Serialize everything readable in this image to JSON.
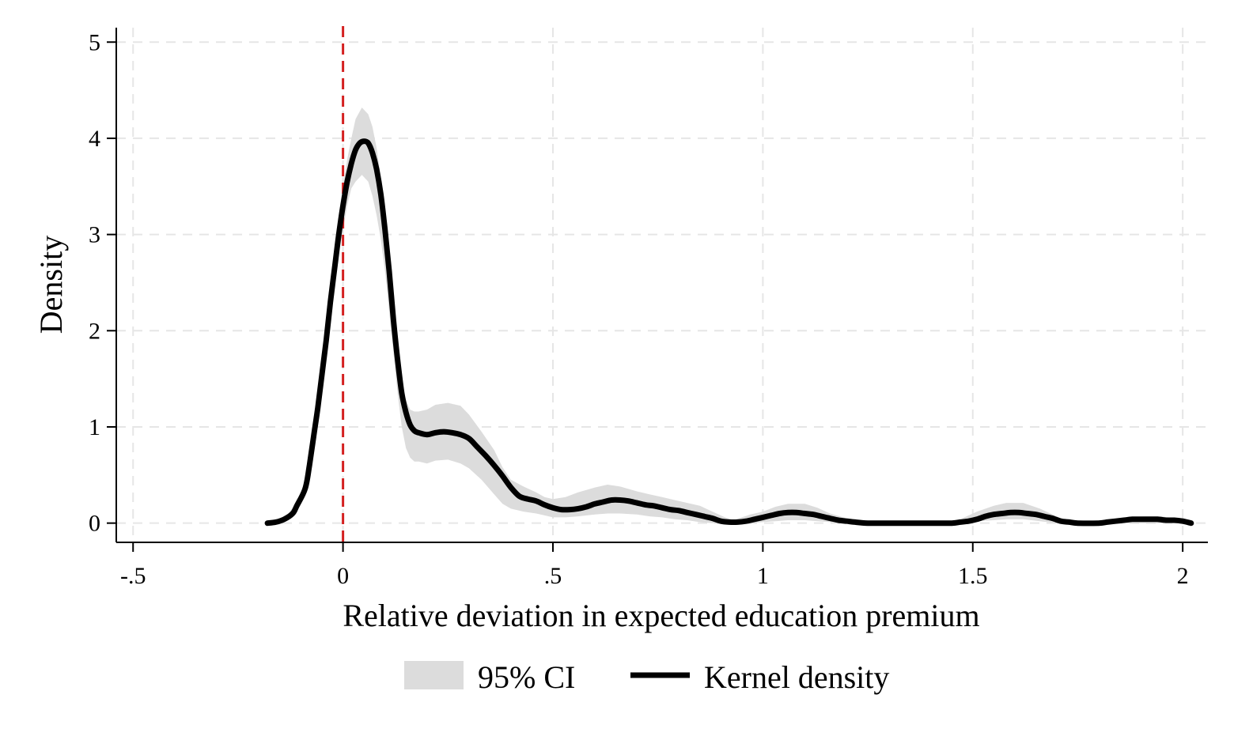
{
  "chart_data": {
    "type": "line",
    "title": "",
    "xlabel": "Relative deviation in expected education premium",
    "ylabel": "Density",
    "xlim": [
      -0.54,
      2.06
    ],
    "ylim": [
      -0.2,
      5.15
    ],
    "x_ticks": [
      -0.5,
      0,
      0.5,
      1,
      1.5,
      2
    ],
    "x_tick_labels": [
      "-.5",
      "0",
      ".5",
      "1",
      "1.5",
      "2"
    ],
    "y_ticks": [
      0,
      1,
      2,
      3,
      4,
      5
    ],
    "y_tick_labels": [
      "0",
      "1",
      "2",
      "3",
      "4",
      "5"
    ],
    "grid": true,
    "legend_position": "bottom",
    "reference_line": {
      "axis": "x",
      "value": 0,
      "color": "#d42020",
      "style": "dashed"
    },
    "colors": {
      "ci_fill": "#dcdcdc",
      "line": "#000000",
      "grid": "#e6e6e6"
    },
    "series": [
      {
        "name": "95% CI",
        "kind": "band",
        "points": [
          [
            -0.18,
            0.0,
            0.01
          ],
          [
            -0.15,
            0.01,
            0.05
          ],
          [
            -0.13,
            0.04,
            0.1
          ],
          [
            -0.11,
            0.12,
            0.22
          ],
          [
            -0.09,
            0.28,
            0.42
          ],
          [
            -0.07,
            0.72,
            0.92
          ],
          [
            -0.05,
            1.4,
            1.68
          ],
          [
            -0.03,
            2.15,
            2.5
          ],
          [
            -0.01,
            2.8,
            3.2
          ],
          [
            0.0,
            3.05,
            3.5
          ],
          [
            0.01,
            3.3,
            3.78
          ],
          [
            0.02,
            3.48,
            4.0
          ],
          [
            0.03,
            3.55,
            4.2
          ],
          [
            0.045,
            3.62,
            4.32
          ],
          [
            0.06,
            3.55,
            4.25
          ],
          [
            0.07,
            3.4,
            4.12
          ],
          [
            0.08,
            3.2,
            3.9
          ],
          [
            0.09,
            2.95,
            3.6
          ],
          [
            0.1,
            2.62,
            3.22
          ],
          [
            0.11,
            2.2,
            2.8
          ],
          [
            0.12,
            1.78,
            2.32
          ],
          [
            0.13,
            1.35,
            1.88
          ],
          [
            0.14,
            1.0,
            1.52
          ],
          [
            0.15,
            0.78,
            1.28
          ],
          [
            0.16,
            0.68,
            1.18
          ],
          [
            0.17,
            0.64,
            1.16
          ],
          [
            0.18,
            0.64,
            1.16
          ],
          [
            0.2,
            0.62,
            1.18
          ],
          [
            0.22,
            0.65,
            1.23
          ],
          [
            0.25,
            0.66,
            1.25
          ],
          [
            0.28,
            0.62,
            1.22
          ],
          [
            0.3,
            0.57,
            1.13
          ],
          [
            0.33,
            0.45,
            0.95
          ],
          [
            0.36,
            0.3,
            0.76
          ],
          [
            0.38,
            0.2,
            0.58
          ],
          [
            0.4,
            0.15,
            0.45
          ],
          [
            0.43,
            0.12,
            0.38
          ],
          [
            0.46,
            0.1,
            0.32
          ],
          [
            0.48,
            0.08,
            0.27
          ],
          [
            0.5,
            0.06,
            0.25
          ],
          [
            0.53,
            0.06,
            0.27
          ],
          [
            0.56,
            0.07,
            0.32
          ],
          [
            0.6,
            0.09,
            0.37
          ],
          [
            0.63,
            0.1,
            0.4
          ],
          [
            0.66,
            0.1,
            0.38
          ],
          [
            0.7,
            0.09,
            0.33
          ],
          [
            0.73,
            0.07,
            0.3
          ],
          [
            0.76,
            0.06,
            0.27
          ],
          [
            0.79,
            0.04,
            0.24
          ],
          [
            0.82,
            0.03,
            0.21
          ],
          [
            0.85,
            0.01,
            0.18
          ],
          [
            0.88,
            0.0,
            0.12
          ],
          [
            0.91,
            0.0,
            0.06
          ],
          [
            0.93,
            0.0,
            0.03
          ],
          [
            0.95,
            0.0,
            0.06
          ],
          [
            0.97,
            0.0,
            0.09
          ],
          [
            1.0,
            0.01,
            0.12
          ],
          [
            1.03,
            0.02,
            0.17
          ],
          [
            1.06,
            0.03,
            0.2
          ],
          [
            1.1,
            0.03,
            0.2
          ],
          [
            1.13,
            0.02,
            0.16
          ],
          [
            1.16,
            0.01,
            0.1
          ],
          [
            1.2,
            0.0,
            0.05
          ],
          [
            1.25,
            0.0,
            0.01
          ],
          [
            1.3,
            0.0,
            0.0
          ],
          [
            1.35,
            0.0,
            0.0
          ],
          [
            1.4,
            0.0,
            0.0
          ],
          [
            1.45,
            0.0,
            0.0
          ],
          [
            1.48,
            0.0,
            0.06
          ],
          [
            1.51,
            0.02,
            0.12
          ],
          [
            1.55,
            0.03,
            0.18
          ],
          [
            1.58,
            0.04,
            0.21
          ],
          [
            1.62,
            0.04,
            0.21
          ],
          [
            1.66,
            0.02,
            0.15
          ],
          [
            1.7,
            0.0,
            0.07
          ],
          [
            1.73,
            0.0,
            0.01
          ],
          [
            1.76,
            0.0,
            0.0
          ],
          [
            1.8,
            0.0,
            0.0
          ],
          [
            1.83,
            0.0,
            0.03
          ],
          [
            1.87,
            0.0,
            0.06
          ],
          [
            1.91,
            0.0,
            0.07
          ],
          [
            1.95,
            0.0,
            0.07
          ],
          [
            1.98,
            0.0,
            0.05
          ],
          [
            2.02,
            0.0,
            0.02
          ]
        ]
      },
      {
        "name": "Kernel density",
        "kind": "line",
        "points": [
          [
            -0.18,
            0.0
          ],
          [
            -0.16,
            0.01
          ],
          [
            -0.14,
            0.04
          ],
          [
            -0.12,
            0.1
          ],
          [
            -0.11,
            0.18
          ],
          [
            -0.09,
            0.36
          ],
          [
            -0.08,
            0.6
          ],
          [
            -0.07,
            0.9
          ],
          [
            -0.06,
            1.2
          ],
          [
            -0.05,
            1.55
          ],
          [
            -0.04,
            1.9
          ],
          [
            -0.03,
            2.3
          ],
          [
            -0.02,
            2.65
          ],
          [
            -0.01,
            3.0
          ],
          [
            0.0,
            3.3
          ],
          [
            0.01,
            3.55
          ],
          [
            0.02,
            3.74
          ],
          [
            0.03,
            3.88
          ],
          [
            0.04,
            3.95
          ],
          [
            0.05,
            3.97
          ],
          [
            0.06,
            3.95
          ],
          [
            0.07,
            3.85
          ],
          [
            0.08,
            3.68
          ],
          [
            0.09,
            3.42
          ],
          [
            0.1,
            3.05
          ],
          [
            0.11,
            2.62
          ],
          [
            0.12,
            2.12
          ],
          [
            0.13,
            1.7
          ],
          [
            0.14,
            1.35
          ],
          [
            0.15,
            1.15
          ],
          [
            0.16,
            1.02
          ],
          [
            0.17,
            0.96
          ],
          [
            0.18,
            0.94
          ],
          [
            0.2,
            0.92
          ],
          [
            0.22,
            0.94
          ],
          [
            0.24,
            0.95
          ],
          [
            0.26,
            0.94
          ],
          [
            0.28,
            0.92
          ],
          [
            0.3,
            0.88
          ],
          [
            0.32,
            0.79
          ],
          [
            0.34,
            0.7
          ],
          [
            0.36,
            0.6
          ],
          [
            0.38,
            0.49
          ],
          [
            0.4,
            0.37
          ],
          [
            0.42,
            0.28
          ],
          [
            0.44,
            0.25
          ],
          [
            0.46,
            0.23
          ],
          [
            0.48,
            0.19
          ],
          [
            0.5,
            0.16
          ],
          [
            0.52,
            0.14
          ],
          [
            0.54,
            0.14
          ],
          [
            0.56,
            0.15
          ],
          [
            0.58,
            0.17
          ],
          [
            0.6,
            0.2
          ],
          [
            0.62,
            0.22
          ],
          [
            0.64,
            0.24
          ],
          [
            0.66,
            0.24
          ],
          [
            0.68,
            0.23
          ],
          [
            0.7,
            0.21
          ],
          [
            0.72,
            0.19
          ],
          [
            0.74,
            0.18
          ],
          [
            0.76,
            0.16
          ],
          [
            0.78,
            0.14
          ],
          [
            0.8,
            0.13
          ],
          [
            0.82,
            0.11
          ],
          [
            0.84,
            0.09
          ],
          [
            0.86,
            0.07
          ],
          [
            0.88,
            0.05
          ],
          [
            0.9,
            0.02
          ],
          [
            0.92,
            0.01
          ],
          [
            0.94,
            0.01
          ],
          [
            0.96,
            0.02
          ],
          [
            0.98,
            0.04
          ],
          [
            1.0,
            0.06
          ],
          [
            1.02,
            0.08
          ],
          [
            1.04,
            0.1
          ],
          [
            1.06,
            0.11
          ],
          [
            1.08,
            0.11
          ],
          [
            1.1,
            0.1
          ],
          [
            1.12,
            0.09
          ],
          [
            1.14,
            0.07
          ],
          [
            1.16,
            0.05
          ],
          [
            1.18,
            0.03
          ],
          [
            1.2,
            0.02
          ],
          [
            1.22,
            0.01
          ],
          [
            1.25,
            0.0
          ],
          [
            1.3,
            0.0
          ],
          [
            1.35,
            0.0
          ],
          [
            1.4,
            0.0
          ],
          [
            1.45,
            0.0
          ],
          [
            1.47,
            0.01
          ],
          [
            1.49,
            0.02
          ],
          [
            1.51,
            0.04
          ],
          [
            1.53,
            0.07
          ],
          [
            1.55,
            0.09
          ],
          [
            1.57,
            0.1
          ],
          [
            1.59,
            0.11
          ],
          [
            1.61,
            0.11
          ],
          [
            1.63,
            0.1
          ],
          [
            1.65,
            0.09
          ],
          [
            1.67,
            0.07
          ],
          [
            1.69,
            0.05
          ],
          [
            1.71,
            0.02
          ],
          [
            1.73,
            0.01
          ],
          [
            1.75,
            0.0
          ],
          [
            1.8,
            0.0
          ],
          [
            1.82,
            0.01
          ],
          [
            1.84,
            0.02
          ],
          [
            1.86,
            0.03
          ],
          [
            1.88,
            0.04
          ],
          [
            1.9,
            0.04
          ],
          [
            1.92,
            0.04
          ],
          [
            1.94,
            0.04
          ],
          [
            1.96,
            0.03
          ],
          [
            1.98,
            0.03
          ],
          [
            2.0,
            0.02
          ],
          [
            2.02,
            0.0
          ]
        ]
      }
    ]
  }
}
